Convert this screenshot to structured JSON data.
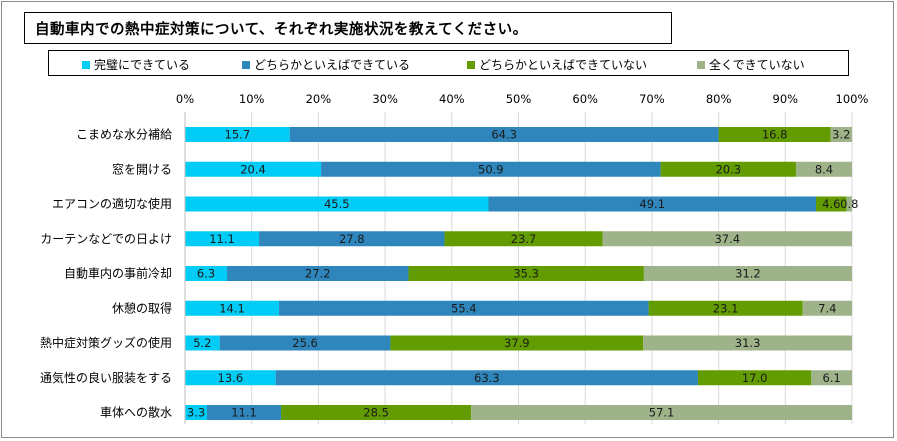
{
  "chart_data": {
    "type": "bar",
    "orientation": "horizontal-stacked-100",
    "title": "自動車内での熱中症対策について、それぞれ実施状況を教えてください。",
    "categories": [
      "こまめな水分補給",
      "窓を開ける",
      "エアコンの適切な使用",
      "カーテンなどでの日よけ",
      "自動車内の事前冷却",
      "休憩の取得",
      "熱中症対策グッズの使用",
      "通気性の良い服装をする",
      "車体への散水"
    ],
    "series": [
      {
        "name": "完璧にできている",
        "color": "#00ccf5",
        "values": [
          15.7,
          20.4,
          45.5,
          11.1,
          6.3,
          14.1,
          5.2,
          13.6,
          3.3
        ]
      },
      {
        "name": "どちらかといえばできている",
        "color": "#2f86bc",
        "values": [
          64.3,
          50.9,
          49.1,
          27.8,
          27.2,
          55.4,
          25.6,
          63.3,
          11.1
        ]
      },
      {
        "name": "どちらかといえばできていない",
        "color": "#629c00",
        "values": [
          16.8,
          20.3,
          4.6,
          23.7,
          35.3,
          23.1,
          37.9,
          17.0,
          28.5
        ]
      },
      {
        "name": "全くできていない",
        "color": "#9fb38a",
        "values": [
          3.2,
          8.4,
          0.8,
          37.4,
          31.2,
          7.4,
          31.3,
          6.1,
          57.1
        ]
      }
    ],
    "value_labels": [
      [
        "15.7",
        "64.3",
        "16.8",
        "3.2"
      ],
      [
        "20.4",
        "50.9",
        "20.3",
        "8.4"
      ],
      [
        "45.5",
        "49.1",
        "4.6",
        "0.8"
      ],
      [
        "11.1",
        "27.8",
        "23.7",
        "37.4"
      ],
      [
        "6.3",
        "27.2",
        "35.3",
        "31.2"
      ],
      [
        "14.1",
        "55.4",
        "23.1",
        "7.4"
      ],
      [
        "5.2",
        "25.6",
        "37.9",
        "31.3"
      ],
      [
        "13.6",
        "63.3",
        "17.0",
        "6.1"
      ],
      [
        "3.3",
        "11.1",
        "28.5",
        "57.1"
      ]
    ],
    "x_ticks": [
      "0%",
      "10%",
      "20%",
      "30%",
      "40%",
      "50%",
      "60%",
      "70%",
      "80%",
      "90%",
      "100%"
    ],
    "xlim": [
      0,
      100
    ],
    "legend_position": "top",
    "grid": true
  }
}
